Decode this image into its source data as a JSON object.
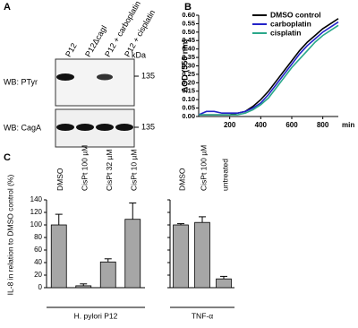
{
  "blot": {
    "panel_label": "A",
    "kda": "kDa",
    "lanes": [
      "P12",
      "P12ΔcagI",
      "P12 + carboplatin",
      "P12 + cisplatin"
    ],
    "rows": [
      {
        "label": "WB: PTyr",
        "marker": "135"
      },
      {
        "label": "WB: CagA",
        "marker": "135"
      }
    ]
  },
  "chart_data": [
    {
      "type": "line",
      "panel_label": "B",
      "y_label": "ΔOD (550 nm)",
      "x_unit": "min",
      "x": [
        0,
        50,
        100,
        150,
        200,
        250,
        300,
        350,
        400,
        450,
        500,
        550,
        600,
        650,
        700,
        750,
        800,
        850,
        900
      ],
      "xlim": [
        0,
        900
      ],
      "xticks": [
        200,
        400,
        600,
        800
      ],
      "ylim": [
        0,
        0.6
      ],
      "yticks": [
        {
          "value": 0,
          "label": "0.00"
        },
        0.05,
        {
          "value": 0.1,
          "label": "0.10"
        },
        0.15,
        {
          "value": 0.2,
          "label": "0.20"
        },
        0.25,
        {
          "value": 0.3,
          "label": "0.30"
        },
        0.35,
        {
          "value": 0.4,
          "label": "0.40"
        },
        0.45,
        {
          "value": 0.5,
          "label": "0.50"
        },
        0.55,
        {
          "value": 0.6,
          "label": "0.60"
        }
      ],
      "legend": "top-left",
      "series": [
        {
          "name": "DMSO control",
          "color": "#000000",
          "values": [
            0.01,
            0.01,
            0.01,
            0.01,
            0.01,
            0.02,
            0.03,
            0.06,
            0.1,
            0.15,
            0.21,
            0.27,
            0.33,
            0.39,
            0.44,
            0.48,
            0.52,
            0.55,
            0.58
          ]
        },
        {
          "name": "carboplatin",
          "color": "#2323c8",
          "values": [
            0.01,
            0.03,
            0.03,
            0.02,
            0.02,
            0.02,
            0.03,
            0.05,
            0.08,
            0.13,
            0.19,
            0.25,
            0.31,
            0.37,
            0.42,
            0.46,
            0.5,
            0.53,
            0.56
          ]
        },
        {
          "name": "cisplatin",
          "color": "#2aa88a",
          "values": [
            0.01,
            0.01,
            0.01,
            0.01,
            0.01,
            0.01,
            0.02,
            0.04,
            0.07,
            0.11,
            0.17,
            0.23,
            0.29,
            0.34,
            0.39,
            0.44,
            0.48,
            0.51,
            0.54
          ]
        }
      ]
    },
    {
      "type": "bar",
      "panel_label": "C",
      "y_label": "IL-8  in relation to DMSO control (%)",
      "group_label": "H. pylori P12",
      "categories": [
        "DMSO",
        "CisPt 100 µM",
        "CisPt 32 µM",
        "CisPt 10 µM"
      ],
      "values": [
        100,
        3,
        41,
        109
      ],
      "errors": [
        17,
        3,
        5,
        26
      ],
      "color": "#a6a6a6",
      "ylim": [
        0,
        140
      ],
      "yticks": [
        0,
        20,
        40,
        60,
        80,
        100,
        120,
        140
      ]
    },
    {
      "type": "bar",
      "group_label": "TNF-α",
      "categories": [
        "DMSO",
        "CisPt 100 µM",
        "untreated"
      ],
      "values": [
        100,
        104,
        14
      ],
      "errors": [
        2,
        9,
        4
      ],
      "color": "#a6a6a6",
      "ylim": [
        0,
        140
      ],
      "yticks": [
        0,
        20,
        40,
        60,
        80,
        100,
        120,
        140
      ]
    }
  ]
}
